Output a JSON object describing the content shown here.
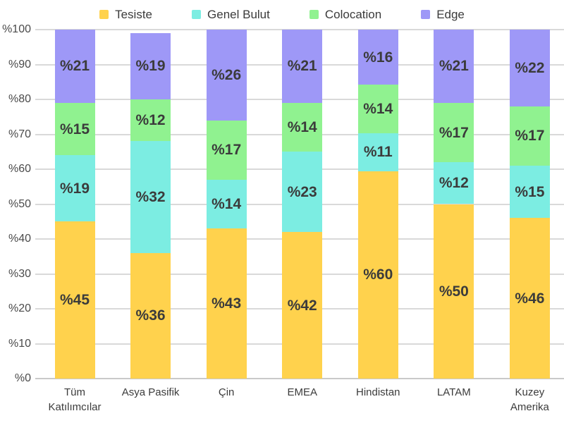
{
  "chart_data": {
    "type": "bar",
    "stacked": true,
    "value_prefix": "%",
    "categories": [
      "Tüm Katılımcılar",
      "Asya Pasifik",
      "Çin",
      "EMEA",
      "Hindistan",
      "LATAM",
      "Kuzey Amerika"
    ],
    "series": [
      {
        "name": "Tesiste",
        "color": "#FFD24D",
        "values": [
          45,
          36,
          43,
          42,
          60,
          50,
          46
        ]
      },
      {
        "name": "Genel Bulut",
        "color": "#7CEDE2",
        "values": [
          19,
          32,
          14,
          23,
          11,
          12,
          15
        ]
      },
      {
        "name": "Colocation",
        "color": "#90F290",
        "values": [
          15,
          12,
          17,
          14,
          14,
          17,
          17
        ]
      },
      {
        "name": "Edge",
        "color": "#9E98F7",
        "values": [
          21,
          19,
          26,
          21,
          16,
          21,
          22
        ]
      }
    ],
    "yticks": [
      {
        "label": "%0",
        "value": 0
      },
      {
        "label": "%10",
        "value": 10
      },
      {
        "label": "%20",
        "value": 20
      },
      {
        "label": "%30",
        "value": 30
      },
      {
        "label": "%40",
        "value": 40
      },
      {
        "label": "%50",
        "value": 50
      },
      {
        "label": "%60",
        "value": 60
      },
      {
        "label": "%70",
        "value": 70
      },
      {
        "label": "%80",
        "value": 80
      },
      {
        "label": "%90",
        "value": 90
      },
      {
        "label": "%100",
        "value": 100
      }
    ],
    "ylim": [
      0,
      100
    ],
    "grid": true,
    "legend_position": "top",
    "title": "",
    "xlabel": "",
    "ylabel": ""
  },
  "colors": {
    "grid": "#d9d9d9",
    "axis_text": "#4a4a4a",
    "label_text": "#3b3b3b",
    "background": "#ffffff"
  }
}
